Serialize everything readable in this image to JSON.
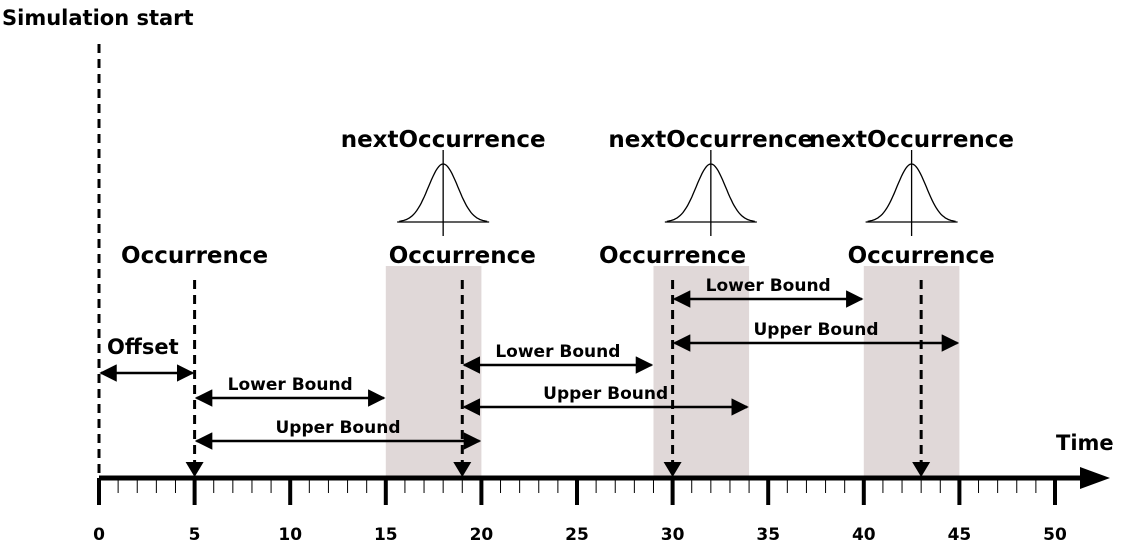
{
  "title": "Simulation start",
  "axis": {
    "label": "Time",
    "min": 0,
    "max": 50,
    "major_ticks": [
      0,
      5,
      10,
      15,
      20,
      25,
      30,
      35,
      40,
      45,
      50
    ],
    "minor_step": 1
  },
  "offset": {
    "label": "Offset",
    "from": 0,
    "to": 5
  },
  "occurrences": [
    {
      "label": "Occurrence",
      "time": 5
    },
    {
      "label": "Occurrence",
      "time": 19
    },
    {
      "label": "Occurrence",
      "time": 30
    },
    {
      "label": "Occurrence",
      "time": 43
    }
  ],
  "next_occurrences": [
    {
      "label": "nextOccurrence",
      "center": 18
    },
    {
      "label": "nextOccurrence",
      "center": 32
    },
    {
      "label": "nextOccurrence",
      "center": 42.5
    }
  ],
  "windows": [
    {
      "from": 15,
      "to": 20
    },
    {
      "from": 29,
      "to": 34
    },
    {
      "from": 40,
      "to": 45
    }
  ],
  "bounds": [
    {
      "label": "Lower Bound",
      "from": 5,
      "to": 15
    },
    {
      "label": "Upper Bound",
      "from": 5,
      "to": 20
    },
    {
      "label": "Lower Bound",
      "from": 19,
      "to": 29
    },
    {
      "label": "Upper Bound",
      "from": 19,
      "to": 34
    },
    {
      "label": "Lower Bound",
      "from": 30,
      "to": 40
    },
    {
      "label": "Upper Bound",
      "from": 30,
      "to": 45
    }
  ],
  "colors": {
    "window": "#e0d8d8",
    "line": "#000000"
  }
}
